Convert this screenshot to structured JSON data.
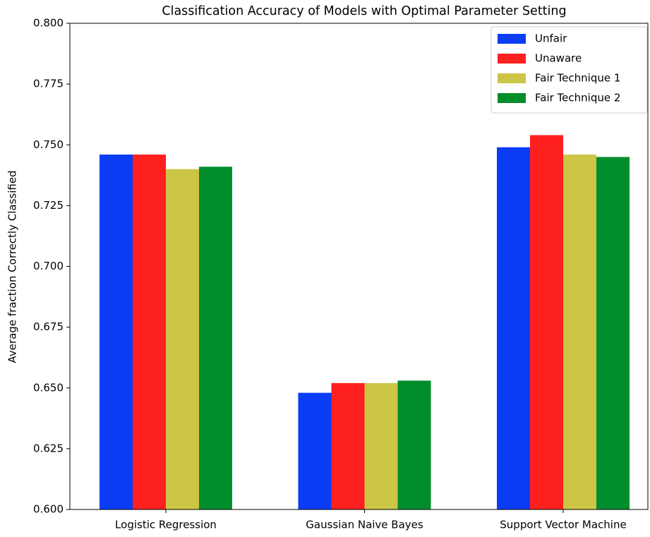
{
  "chart_data": {
    "type": "bar",
    "title": "Classification Accuracy of Models with Optimal Parameter Setting",
    "y_label": "Average fraction Correctly Classified",
    "categories": [
      "Logistic Regression",
      "Gaussian Naive Bayes",
      "Support Vector Machine"
    ],
    "series": [
      {
        "name": "Unfair",
        "color": "#0a3df5",
        "values": [
          0.746,
          0.648,
          0.749
        ]
      },
      {
        "name": "Unaware",
        "color": "#fe1f1f",
        "values": [
          0.746,
          0.652,
          0.754
        ]
      },
      {
        "name": "Fair Technique 1",
        "color": "#cdc545",
        "values": [
          0.74,
          0.652,
          0.746
        ]
      },
      {
        "name": "Fair Technique 2",
        "color": "#008d2c",
        "values": [
          0.741,
          0.653,
          0.745
        ]
      }
    ],
    "ylim": [
      0.6,
      0.8
    ],
    "yticks": [
      {
        "value": 0.6,
        "label": "0.600"
      },
      0.625,
      {
        "value": 0.65,
        "label": "0.650"
      },
      0.675,
      {
        "value": 0.7,
        "label": "0.700"
      },
      0.725,
      {
        "value": 0.75,
        "label": "0.750"
      },
      0.775,
      {
        "value": 0.8,
        "label": "0.800"
      }
    ],
    "legend": "upper right"
  }
}
